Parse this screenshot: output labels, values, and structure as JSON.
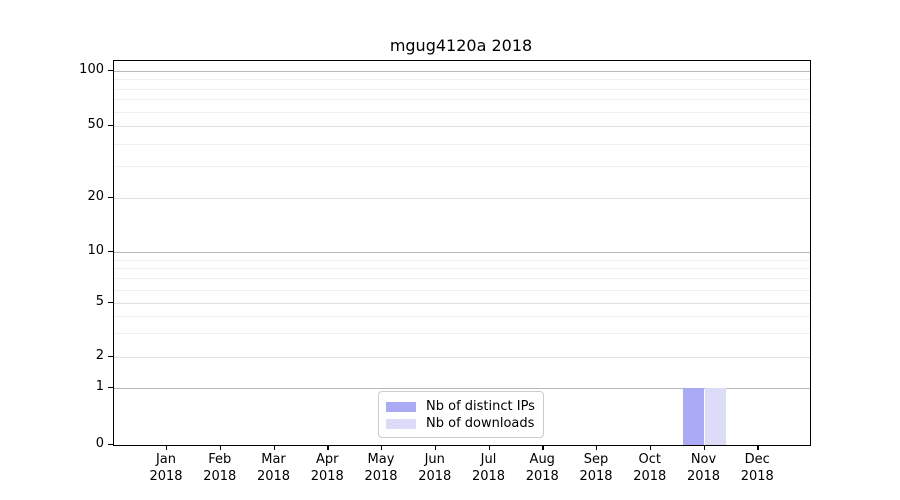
{
  "chart_data": {
    "type": "bar",
    "title": "mgug4120a 2018",
    "categories": [
      "Jan",
      "Feb",
      "Mar",
      "Apr",
      "May",
      "Jun",
      "Jul",
      "Aug",
      "Sep",
      "Oct",
      "Nov",
      "Dec"
    ],
    "year_label": "2018",
    "series": [
      {
        "name": "Nb of distinct IPs",
        "color": "#aaaaf7",
        "values": [
          0,
          0,
          0,
          0,
          0,
          0,
          0,
          0,
          0,
          0,
          1,
          0
        ]
      },
      {
        "name": "Nb of downloads",
        "color": "#dcdcf9",
        "values": [
          0,
          0,
          0,
          0,
          0,
          0,
          0,
          0,
          0,
          0,
          1,
          0
        ]
      }
    ],
    "y_axis": {
      "ticks": [
        0,
        1,
        2,
        5,
        10,
        20,
        50,
        100
      ],
      "scale": "symlog",
      "range": [
        0,
        100
      ]
    },
    "x_axis": {
      "months": 12,
      "year": "2018"
    },
    "legend": {
      "position": "lower center",
      "entries": [
        "Nb of distinct IPs",
        "Nb of downloads"
      ]
    },
    "grid": "both"
  },
  "colors": {
    "bar_distinct_ips": "#aaaaf7",
    "bar_downloads": "#dcdcf9",
    "grid_decade": "#b8b8b8",
    "grid_major": "#e0e0e0",
    "grid_minor": "#f0f0f0",
    "axis": "#000000",
    "legend_border": "#cccccc"
  }
}
